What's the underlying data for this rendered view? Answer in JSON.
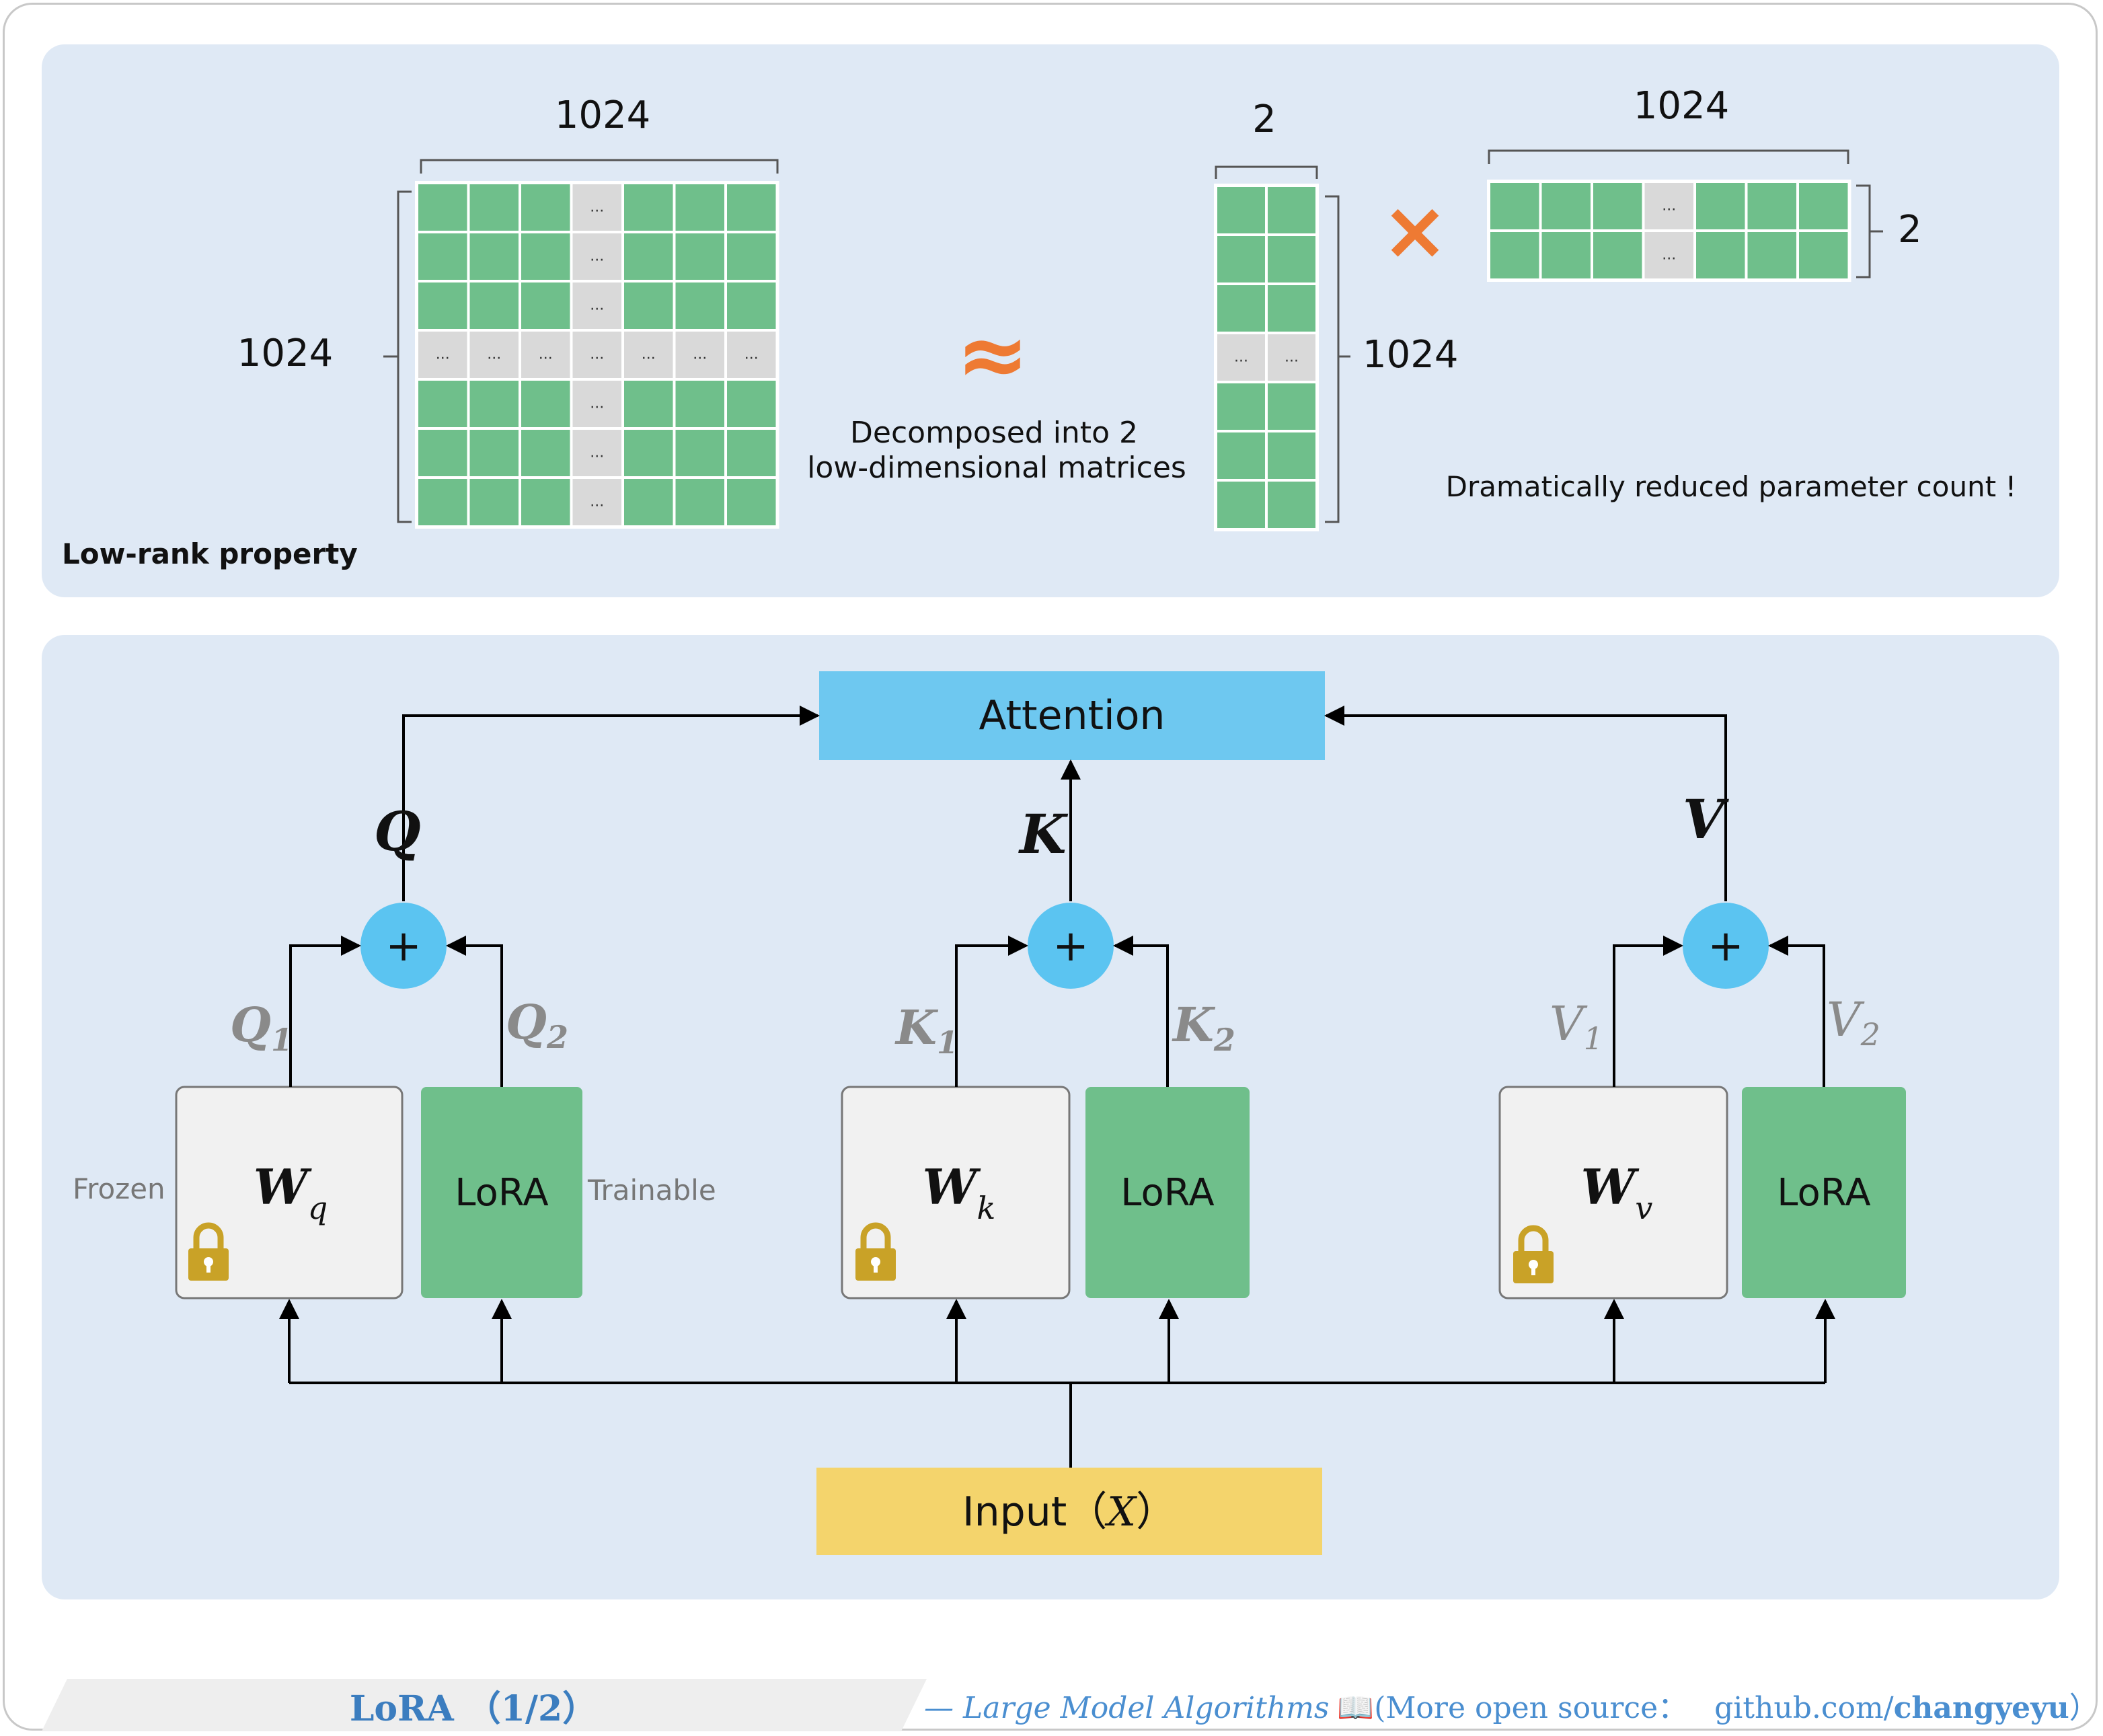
{
  "top_panel": {
    "label": "Low-rank property",
    "big_matrix": {
      "cols_label": "1024",
      "rows_label": "1024",
      "ellipsis": "..."
    },
    "approx_symbol": "≈",
    "decompose_line1": "Decomposed into 2",
    "decompose_line2": "low-dimensional matrices",
    "matrix_a": {
      "cols_label": "2",
      "rows_label": "1024"
    },
    "times_symbol": "×",
    "matrix_b": {
      "cols_label": "1024",
      "rows_label": "2"
    },
    "reduced_note": "Dramatically reduced parameter count !"
  },
  "bottom_panel": {
    "attention_label": "Attention",
    "input_label": "Input（",
    "input_var": "X",
    "input_close": "）",
    "plus_symbol": "+",
    "frozen_label": "Frozen",
    "trainable_label": "Trainable",
    "branches": [
      {
        "out": "Q",
        "out1": "Q",
        "sub1": "1",
        "out2": "Q",
        "sub2": "2",
        "w": "W",
        "w_sub": "q",
        "lora": "LoRA"
      },
      {
        "out": "K",
        "out1": "K",
        "sub1": "1",
        "out2": "K",
        "sub2": "2",
        "w": "W",
        "w_sub": "k",
        "lora": "LoRA"
      },
      {
        "out": "V",
        "out1": "V",
        "sub1": "1",
        "out2": "V",
        "sub2": "2",
        "w": "W",
        "w_sub": "v",
        "lora": "LoRA"
      }
    ]
  },
  "footer": {
    "title": "LoRA （1/2）",
    "series": "— Large Model Algorithms",
    "book_icon": "📖",
    "more": "(More open source：",
    "url_prefix": "github.com/",
    "url_user": "changyeyu",
    "close": "）"
  },
  "colors": {
    "panel_bg": "#dfe9f5",
    "cell_green": "#6fbf8b",
    "cell_gray": "#d9d9d9",
    "attention_blue": "#6ec8f0",
    "plus_blue": "#5bc4f1",
    "input_yellow": "#f4d46c",
    "orange": "#ee7a33",
    "lock_gold": "#c9a227",
    "w_box": "#f1f1f1",
    "footer_title": "#3b7dbf",
    "footer_text": "#4a8ed0"
  }
}
